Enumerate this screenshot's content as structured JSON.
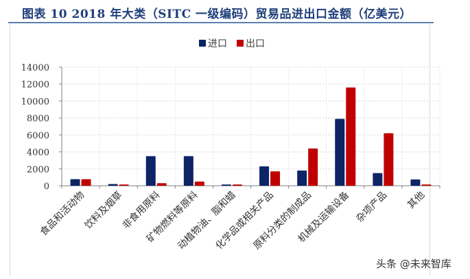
{
  "header": {
    "title": "图表 10   2018 年大类（SITC 一级编码）贸易品进出口金额（亿美元）"
  },
  "legend": {
    "items": [
      {
        "label": "进口",
        "color": "#0d2466"
      },
      {
        "label": "出口",
        "color": "#c00000"
      }
    ]
  },
  "watermark": "头条 @未来智库",
  "chart_data": {
    "type": "bar",
    "title": "2018 年大类（SITC 一级编码）贸易品进出口金额（亿美元）",
    "xlabel": "",
    "ylabel": "",
    "ylim": [
      0,
      14000
    ],
    "yticks": [
      0,
      2000,
      4000,
      6000,
      8000,
      10000,
      12000,
      14000
    ],
    "grid": true,
    "legend_position": "top",
    "categories": [
      "食品和活动物",
      "饮料及烟草",
      "非食用原料",
      "矿物燃料等原料",
      "动植物油、脂和蜡",
      "化学品或相关产品",
      "原料分类的制成品",
      "机械及运输设备",
      "杂项产品",
      "其他"
    ],
    "series": [
      {
        "name": "进口",
        "color": "#0d2466",
        "values": [
          780,
          200,
          3500,
          3500,
          150,
          2300,
          1800,
          7900,
          1500,
          750
        ]
      },
      {
        "name": "出口",
        "color": "#c00000",
        "values": [
          780,
          150,
          300,
          500,
          150,
          1700,
          4400,
          11600,
          6200,
          150
        ]
      }
    ]
  }
}
